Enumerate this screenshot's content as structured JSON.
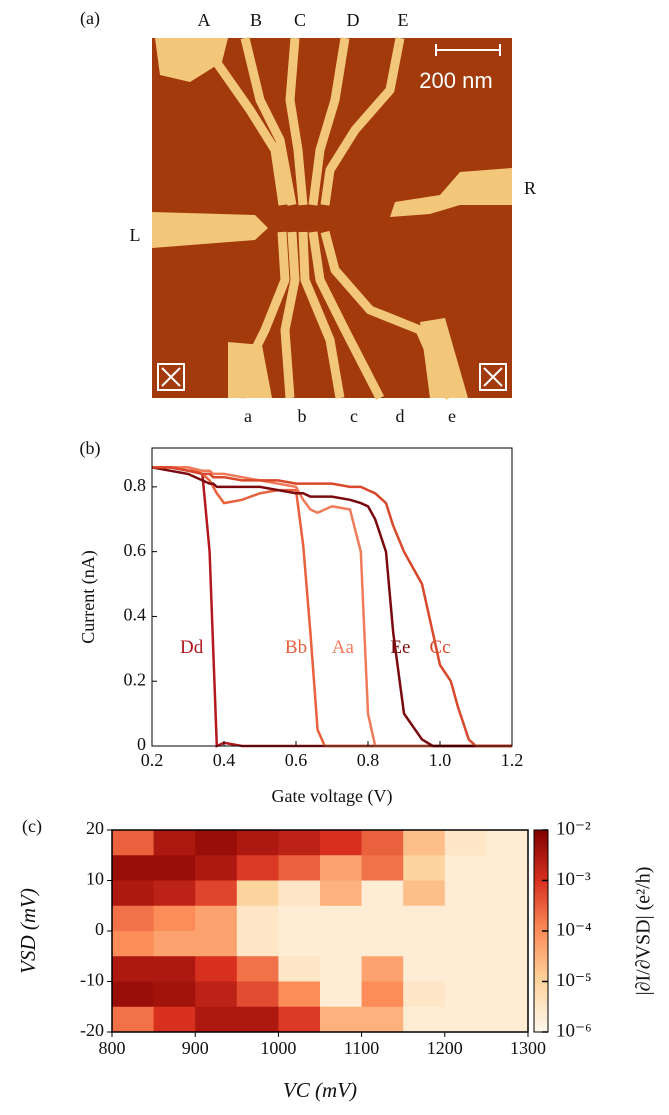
{
  "panel_a": {
    "label": "(a)",
    "top_labels": [
      "A",
      "B",
      "C",
      "D",
      "E"
    ],
    "bottom_labels": [
      "a",
      "b",
      "c",
      "d",
      "e"
    ],
    "left_label": "L",
    "right_label": "R",
    "scale_bar": "200 nm"
  },
  "chart_data": [
    {
      "type": "line",
      "panel_label": "(b)",
      "x_label": "Gate voltage (V)",
      "y_label": "Current (nA)",
      "x": [
        0.2,
        0.25,
        0.3,
        0.34,
        0.36,
        0.37,
        0.38,
        0.4,
        0.45,
        0.5,
        0.55,
        0.6,
        0.62,
        0.64,
        0.66,
        0.68,
        0.7,
        0.75,
        0.78,
        0.8,
        0.82,
        0.85,
        0.87,
        0.9,
        0.95,
        0.98,
        1.0,
        1.03,
        1.05,
        1.08,
        1.1,
        1.2
      ],
      "series": [
        {
          "name": "Dd",
          "color": "#b3181e",
          "label_at": [
            0.31,
            0.3
          ],
          "values": [
            0.86,
            0.86,
            0.85,
            0.84,
            0.6,
            0.3,
            0.0,
            0.01,
            0,
            0,
            0,
            0,
            0,
            0,
            0,
            0,
            0,
            0,
            0,
            0,
            0,
            0,
            0,
            0,
            0,
            0,
            0,
            0,
            0,
            0,
            0,
            0
          ]
        },
        {
          "name": "Bb",
          "color": "#e8603c",
          "label_at": [
            0.6,
            0.3
          ],
          "values": [
            0.86,
            0.86,
            0.86,
            0.84,
            0.82,
            0.8,
            0.78,
            0.75,
            0.76,
            0.78,
            0.79,
            0.79,
            0.62,
            0.35,
            0.05,
            0,
            0,
            0,
            0,
            0,
            0,
            0,
            0,
            0,
            0,
            0,
            0,
            0,
            0,
            0,
            0,
            0
          ]
        },
        {
          "name": "Aa",
          "color": "#f07a5a",
          "label_at": [
            0.73,
            0.3
          ],
          "values": [
            0.86,
            0.86,
            0.86,
            0.85,
            0.85,
            0.84,
            0.84,
            0.84,
            0.83,
            0.82,
            0.81,
            0.8,
            0.76,
            0.73,
            0.72,
            0.73,
            0.74,
            0.73,
            0.6,
            0.1,
            0,
            0,
            0,
            0,
            0,
            0,
            0,
            0,
            0,
            0,
            0,
            0
          ]
        },
        {
          "name": "Ee",
          "color": "#7a0a0e",
          "label_at": [
            0.89,
            0.3
          ],
          "values": [
            0.86,
            0.85,
            0.84,
            0.82,
            0.81,
            0.81,
            0.8,
            0.8,
            0.8,
            0.8,
            0.79,
            0.78,
            0.78,
            0.77,
            0.77,
            0.77,
            0.77,
            0.76,
            0.75,
            0.74,
            0.7,
            0.6,
            0.35,
            0.1,
            0.02,
            0,
            0,
            0,
            0,
            0,
            0,
            0
          ]
        },
        {
          "name": "Cc",
          "color": "#d9482a",
          "label_at": [
            1.0,
            0.3
          ],
          "values": [
            0.86,
            0.86,
            0.85,
            0.84,
            0.84,
            0.83,
            0.83,
            0.83,
            0.82,
            0.82,
            0.82,
            0.81,
            0.81,
            0.81,
            0.81,
            0.81,
            0.81,
            0.8,
            0.8,
            0.79,
            0.78,
            0.75,
            0.68,
            0.6,
            0.5,
            0.35,
            0.25,
            0.2,
            0.12,
            0.02,
            0,
            0
          ]
        }
      ],
      "xlim": [
        0.2,
        1.2
      ],
      "xticks": [
        0.2,
        0.4,
        0.6,
        0.8,
        {
          "value": 1,
          "label": "1.0"
        },
        1.2
      ],
      "ylim": [
        0,
        0.92
      ],
      "yticks": [
        0,
        0.2,
        0.4,
        0.6,
        0.8
      ]
    },
    {
      "type": "heatmap",
      "panel_label": "(c)",
      "x_label": "VC (mV)",
      "y_label": "VSD (mV)",
      "colorbar_label": "|∂I/∂VSD| (e²/h)",
      "x": [
        825,
        875,
        925,
        975,
        1025,
        1075,
        1125,
        1175,
        1225,
        1275
      ],
      "y": [
        17.5,
        12.5,
        7.5,
        2.5,
        -2.5,
        -7.5,
        -12.5,
        -17.5
      ],
      "z": [
        [
          0.0003,
          0.003,
          0.005,
          0.003,
          0.002,
          0.001,
          0.0003,
          2e-05,
          3e-06,
          2e-06
        ],
        [
          0.005,
          0.005,
          0.003,
          0.0008,
          0.0003,
          5e-05,
          0.0002,
          1e-05,
          2e-06,
          2e-06
        ],
        [
          0.003,
          0.002,
          0.0006,
          1e-05,
          3e-06,
          3e-05,
          2e-06,
          2e-05,
          2e-06,
          2e-06
        ],
        [
          0.0002,
          0.0001,
          5e-05,
          3e-06,
          2e-06,
          2e-06,
          2e-06,
          2e-06,
          2e-06,
          2e-06
        ],
        [
          0.0001,
          5e-05,
          5e-05,
          3e-06,
          2e-06,
          2e-06,
          2e-06,
          2e-06,
          2e-06,
          2e-06
        ],
        [
          0.003,
          0.003,
          0.001,
          0.0002,
          3e-06,
          2e-06,
          5e-05,
          2e-06,
          2e-06,
          2e-06
        ],
        [
          0.005,
          0.004,
          0.002,
          0.0005,
          0.0001,
          2e-06,
          0.0001,
          3e-06,
          2e-06,
          2e-06
        ],
        [
          0.0002,
          0.001,
          0.003,
          0.003,
          0.0008,
          3e-05,
          3e-05,
          2e-06,
          2e-06,
          2e-06
        ]
      ],
      "xlim": [
        800,
        1300
      ],
      "xticks": [
        800,
        900,
        1000,
        1100,
        1200,
        1300
      ],
      "ylim": [
        -20,
        20
      ],
      "yticks": [
        -20,
        -10,
        0,
        10,
        20
      ],
      "zlim": [
        1e-06,
        0.01
      ],
      "zlog": true,
      "colormap": "OrRd",
      "zticks": [
        {
          "value": 0.01,
          "label": "10⁻²"
        },
        {
          "value": 0.001,
          "label": "10⁻³"
        },
        {
          "value": 0.0001,
          "label": "10⁻⁴"
        },
        {
          "value": 1e-05,
          "label": "10⁻⁵"
        },
        {
          "value": 1e-06,
          "label": "10⁻⁶"
        }
      ]
    }
  ]
}
